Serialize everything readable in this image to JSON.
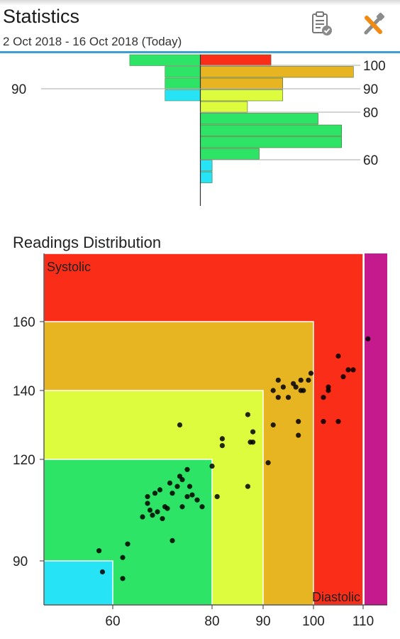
{
  "header": {
    "title": "Statistics",
    "subtitle": "2 Oct 2018 - 16 Oct 2018 (Today)",
    "report_icon": "clipboard-check-icon",
    "tools_icon": "tools-icon"
  },
  "chart_data": [
    {
      "type": "bar",
      "orientation": "horizontal",
      "left_axis_ticks": [
        90
      ],
      "right_axis_ticks": [
        100,
        90,
        80,
        60
      ],
      "left_series": {
        "name": "",
        "values": [
          6,
          3,
          3,
          3
        ],
        "colors": [
          "#2ee466",
          "#2ee466",
          "#2ee466",
          "#26e3f5"
        ]
      },
      "right_series": {
        "name": "",
        "values": [
          6,
          13,
          7,
          7,
          4,
          10,
          12,
          12,
          5,
          1,
          1
        ],
        "colors": [
          "#fa2d19",
          "#e8b522",
          "#e8b522",
          "#ddfc3e",
          "#ddfc3e",
          "#2ee466",
          "#2ee466",
          "#2ee466",
          "#2ee466",
          "#26e3f5",
          "#26e3f5"
        ]
      }
    },
    {
      "type": "scatter",
      "title": "Readings Distribution",
      "xlabel": "Diastolic",
      "ylabel": "Systolic",
      "xticks": [
        60,
        80,
        90,
        100,
        110
      ],
      "yticks": [
        90,
        120,
        140,
        160
      ],
      "zones": [
        {
          "name": "",
          "x_max": 60,
          "y_max": 90,
          "color": "#26e3f5"
        },
        {
          "name": "",
          "x_max": 80,
          "y_max": 120,
          "color": "#2ee466"
        },
        {
          "name": "",
          "x_max": 90,
          "y_max": 140,
          "color": "#ddfc3e"
        },
        {
          "name": "",
          "x_max": 100,
          "y_max": 160,
          "color": "#e8b522"
        },
        {
          "name": "",
          "x_max": 110,
          "y_max": 180,
          "color": "#fa2d19"
        },
        {
          "name": "",
          "x_max": 115,
          "y_max": 180,
          "color": "#c41a8e"
        }
      ],
      "points": [
        [
          56,
          93
        ],
        [
          57,
          87.5
        ],
        [
          62,
          91
        ],
        [
          62,
          86
        ],
        [
          63,
          95
        ],
        [
          66,
          103
        ],
        [
          67,
          107
        ],
        [
          67,
          109
        ],
        [
          67.5,
          105
        ],
        [
          68,
          103.5
        ],
        [
          68.5,
          110
        ],
        [
          69,
          104.5
        ],
        [
          69.5,
          111
        ],
        [
          70,
          102.5
        ],
        [
          70.5,
          106
        ],
        [
          71,
          105.5
        ],
        [
          71.5,
          113
        ],
        [
          72,
          96
        ],
        [
          72,
          110
        ],
        [
          73,
          112
        ],
        [
          73.5,
          115
        ],
        [
          73.5,
          130
        ],
        [
          74,
          114
        ],
        [
          74,
          106
        ],
        [
          75,
          109
        ],
        [
          75,
          117
        ],
        [
          75.5,
          112
        ],
        [
          76,
          109.5
        ],
        [
          77,
          108
        ],
        [
          78,
          106
        ],
        [
          80,
          118
        ],
        [
          81,
          109
        ],
        [
          82,
          124
        ],
        [
          82,
          126
        ],
        [
          87,
          133
        ],
        [
          87,
          112
        ],
        [
          87.5,
          125
        ],
        [
          88,
          125
        ],
        [
          88,
          128
        ],
        [
          91,
          119
        ],
        [
          92,
          130
        ],
        [
          92,
          140
        ],
        [
          93,
          138
        ],
        [
          93,
          143
        ],
        [
          94,
          141
        ],
        [
          95,
          138
        ],
        [
          96,
          142
        ],
        [
          96.5,
          141
        ],
        [
          97,
          131
        ],
        [
          97,
          127
        ],
        [
          97.5,
          140
        ],
        [
          97.5,
          143
        ],
        [
          98,
          140
        ],
        [
          99,
          143
        ],
        [
          99.5,
          145
        ],
        [
          102,
          138
        ],
        [
          102,
          131
        ],
        [
          103,
          140
        ],
        [
          103,
          141
        ],
        [
          105,
          150
        ],
        [
          105,
          131
        ],
        [
          106,
          144
        ],
        [
          107,
          146
        ],
        [
          108,
          146
        ],
        [
          111,
          155
        ]
      ]
    }
  ]
}
